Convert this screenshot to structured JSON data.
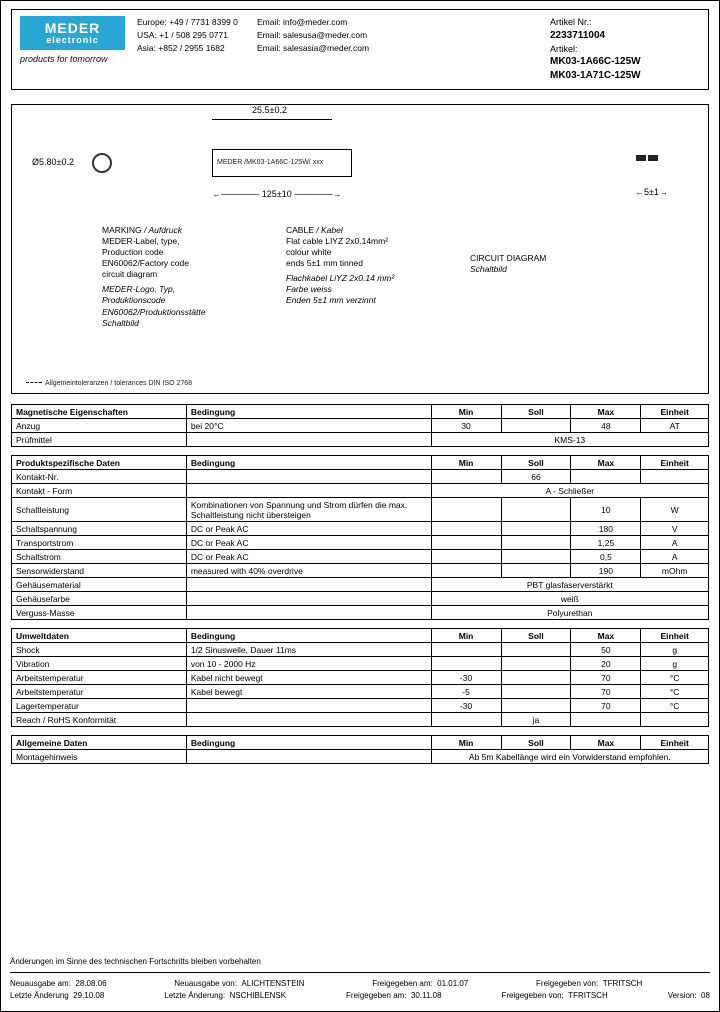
{
  "header": {
    "logo_top": "MEDER",
    "logo_bottom": "electronic",
    "slogan": "products for tomorrow",
    "contacts": [
      {
        "region": "Europe: +49 / 7731 8399 0",
        "email": "Email: info@meder.com"
      },
      {
        "region": "USA: +1 / 508 295 0771",
        "email": "Email: salesusa@meder.com"
      },
      {
        "region": "Asia: +852 / 2955 1682",
        "email": "Email: salesasia@meder.com"
      }
    ],
    "artikel_nr_label": "Artikel Nr.:",
    "artikel_nr": "2233711004",
    "artikel_label": "Artikel:",
    "artikel1": "MK03-1A66C-125W",
    "artikel2": "MK03-1A71C-125W"
  },
  "diagram": {
    "dim_top": "25.5±0.2",
    "dim_circle": "Ø5.80±0.2",
    "rect_text": "MEDER /MK03-1A66C-125W/ xxx",
    "dim_51": "5±1",
    "dim_125": "125±10",
    "marking_head": "MARKING",
    "marking_head_it": " / Aufdruck",
    "marking_lines": [
      "MEDER-Label, type,",
      "Production code",
      "EN60062/Factory code",
      "circuit diagram"
    ],
    "marking_it": [
      "MEDER-Logo, Typ,",
      "Produktionscode",
      "EN60062/Produktionsstätte",
      "Schaltbild"
    ],
    "cable_head": "CABLE",
    "cable_head_it": " / Kabel",
    "cable_lines": [
      "Flat cable LIYZ 2x0.14mm²",
      "colour white",
      "ends 5±1 mm tinned"
    ],
    "cable_it": [
      "Flachkabel LiYZ 2x0.14 mm²",
      "Farbe weiss",
      "Enden 5±1 mm verzinnt"
    ],
    "circuit_head": "CIRCUIT DIAGRAM",
    "circuit_it": "Schaltbild",
    "footnote": "Allgemeintoleranzen / tolerances DIN ISO 2768"
  },
  "tables": {
    "t1": {
      "head": [
        "Magnetische Eigenschaften",
        "Bedingung",
        "Min",
        "Soll",
        "Max",
        "Einheit"
      ],
      "rows": [
        [
          "Anzug",
          "bei 20°C",
          "30",
          "",
          "48",
          "AT"
        ],
        [
          "Prüfmittel",
          "",
          {
            "span": 4,
            "val": "KMS-13"
          }
        ]
      ]
    },
    "t2": {
      "head": [
        "Produktspezifische Daten",
        "Bedingung",
        "Min",
        "Soll",
        "Max",
        "Einheit"
      ],
      "rows": [
        [
          "Kontakt-Nr.",
          "",
          "",
          "66",
          "",
          ""
        ],
        [
          "Kontakt - Form",
          "",
          {
            "span": 4,
            "val": "A - Schließer"
          }
        ],
        [
          "Schaltleistung",
          "Kombinationen von Spannung und Strom dürfen die max. Schaltleistung nicht übersteigen",
          "",
          "",
          "10",
          "W"
        ],
        [
          "Schaltspannung",
          "DC or Peak AC",
          "",
          "",
          "180",
          "V"
        ],
        [
          "Transportstrom",
          "DC or Peak AC",
          "",
          "",
          "1,25",
          "A"
        ],
        [
          "Schaltstrom",
          "DC or Peak AC",
          "",
          "",
          "0,5",
          "A"
        ],
        [
          "Sensorwiderstand",
          "measured with 40% overdrive",
          "",
          "",
          "190",
          "mOhm"
        ],
        [
          "Gehäusematerial",
          "",
          {
            "span": 4,
            "val": "PBT glasfaserverstärkt"
          }
        ],
        [
          "Gehäusefarbe",
          "",
          {
            "span": 4,
            "val": "weiß"
          }
        ],
        [
          "Verguss-Masse",
          "",
          {
            "span": 4,
            "val": "Polyurethan"
          }
        ]
      ]
    },
    "t3": {
      "head": [
        "Umweltdaten",
        "Bedingung",
        "Min",
        "Soll",
        "Max",
        "Einheit"
      ],
      "rows": [
        [
          "Shock",
          "1/2 Sinuswelle, Dauer 11ms",
          "",
          "",
          "50",
          "g"
        ],
        [
          "Vibration",
          "von 10 - 2000 Hz",
          "",
          "",
          "20",
          "g"
        ],
        [
          "Arbeitstemperatur",
          "Kabel nicht bewegt",
          "-30",
          "",
          "70",
          "°C"
        ],
        [
          "Arbeitstemperatur",
          "Kabel bewegt",
          "-5",
          "",
          "70",
          "°C"
        ],
        [
          "Lagertemperatur",
          "",
          "-30",
          "",
          "70",
          "°C"
        ],
        [
          "Reach / RoHS Konformität",
          "",
          "",
          "ja",
          "",
          ""
        ]
      ]
    },
    "t4": {
      "head": [
        "Allgemeine Daten",
        "Bedingung",
        "Min",
        "Soll",
        "Max",
        "Einheit"
      ],
      "rows": [
        [
          "Montagehinweis",
          "",
          {
            "span": 4,
            "val": "Ab 5m Kabellänge wird ein Vorwiderstand empfohlen."
          }
        ]
      ]
    }
  },
  "footer": {
    "line1": "Änderungen im Sinne des technischen Fortschritts bleiben vorbehalten",
    "neu_am_l": "Neuausgabe am:",
    "neu_am": "28.08.06",
    "neu_von_l": "Neuausgabe von:",
    "neu_von": "ALICHTENSTEIN",
    "frei_am_l": "Freigegeben am:",
    "frei_am": "01.01.07",
    "frei_von_l": "Freigegeben von:",
    "frei_von": "TFRITSCH",
    "la_am_l": "Letzte Änderung",
    "la_am": "29.10.08",
    "la_von_l": "Letzte Änderung:",
    "la_von": "NSCHIBLENSK",
    "frei2_am_l": "Freigegeben am:",
    "frei2_am": "30.11.08",
    "frei2_von_l": "Freigegeben von:",
    "frei2_von": "TFRITSCH",
    "ver_l": "Version:",
    "ver": "08"
  }
}
